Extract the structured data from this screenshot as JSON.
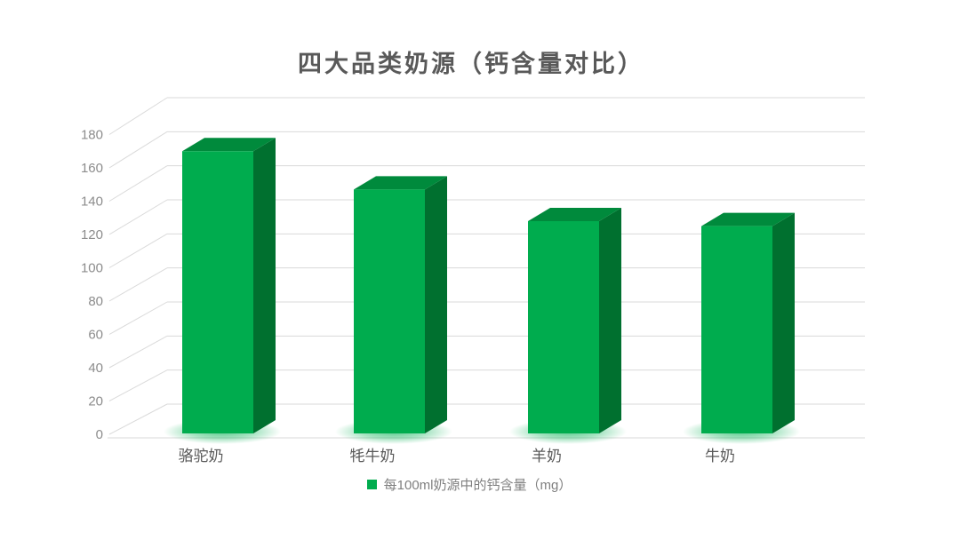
{
  "title": {
    "text": "四大品类奶源（钙含量对比）"
  },
  "legend": {
    "label": "每100ml奶源中的钙含量（mg）"
  },
  "chart_data": {
    "type": "bar",
    "style": "3d-column",
    "title": "四大品类奶源（钙含量对比）",
    "categories": [
      "骆驼奶",
      "牦牛奶",
      "羊奶",
      "牛奶"
    ],
    "series": [
      {
        "name": "每100ml奶源中的钙含量（mg）",
        "values": [
          170,
          147,
          128,
          125
        ]
      }
    ],
    "xlabel": "",
    "ylabel": "",
    "ylim": [
      0,
      180
    ],
    "ytick_step": 20,
    "grid": true,
    "legend_position": "bottom"
  },
  "colors": {
    "bar_front": "#00AC4E",
    "bar_top": "#008A3C",
    "bar_side": "#00702F",
    "bar_glow": "#00B050",
    "grid_line": "#DADADA",
    "axis_text": "#8C8C8C",
    "category_text": "#595959",
    "title_text": "#595959",
    "legend_text": "#7F7F7F"
  }
}
